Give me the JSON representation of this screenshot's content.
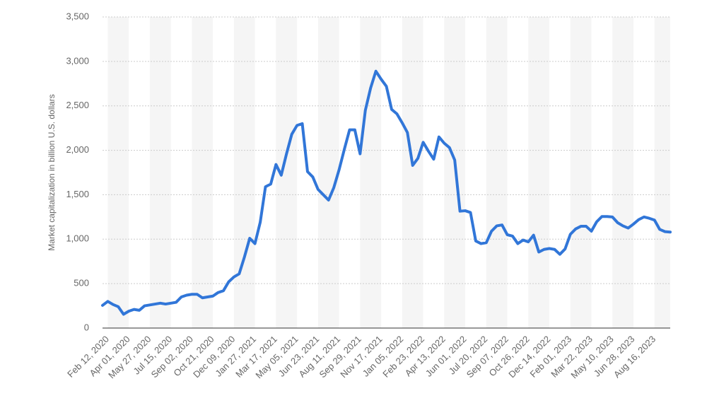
{
  "chart_data": {
    "type": "line",
    "y_label": "Market capitalization in billion U.S. dollars",
    "categories": [
      null,
      "Feb 12, 2020",
      null,
      null,
      null,
      "Apr 01, 2020",
      null,
      null,
      null,
      "May 27, 2020",
      null,
      null,
      null,
      "Jul 15, 2020",
      null,
      null,
      null,
      "Sep 02, 2020",
      null,
      null,
      null,
      "Oct 21, 2020",
      null,
      null,
      null,
      "Dec 09, 2020",
      null,
      null,
      null,
      "Jan 27, 2021",
      null,
      null,
      null,
      "Mar 17, 2021",
      null,
      null,
      null,
      "May 05, 2021",
      null,
      null,
      null,
      "Jun 23, 2021",
      null,
      null,
      null,
      "Aug 11, 2021",
      null,
      null,
      null,
      "Sep 29, 2021",
      null,
      null,
      null,
      "Nov 17, 2021",
      null,
      null,
      null,
      "Jan 05, 2022",
      null,
      null,
      null,
      "Feb 23, 2022",
      null,
      null,
      null,
      "Apr 13, 2022",
      null,
      null,
      null,
      "Jun 01, 2022",
      null,
      null,
      null,
      "Jul 20, 2022",
      null,
      null,
      null,
      "Sep 07, 2022",
      null,
      null,
      null,
      "Oct 26, 2022",
      null,
      null,
      null,
      "Dec 14, 2022",
      null,
      null,
      null,
      "Feb 01, 2023",
      null,
      null,
      null,
      "Mar 22, 2023",
      null,
      null,
      null,
      "May 10, 2023",
      null,
      null,
      null,
      "Jun 28, 2023",
      null,
      null,
      null,
      "Aug 16, 2023",
      null,
      null,
      null
    ],
    "values": [
      255,
      300,
      265,
      240,
      155,
      190,
      210,
      200,
      250,
      260,
      270,
      280,
      270,
      280,
      290,
      350,
      370,
      380,
      380,
      340,
      350,
      360,
      400,
      420,
      520,
      575,
      610,
      800,
      1010,
      950,
      1190,
      1590,
      1620,
      1840,
      1720,
      1960,
      2180,
      2280,
      2300,
      1760,
      1700,
      1560,
      1500,
      1440,
      1580,
      1780,
      2010,
      2230,
      2230,
      1960,
      2450,
      2700,
      2890,
      2800,
      2720,
      2460,
      2410,
      2310,
      2200,
      1830,
      1910,
      2090,
      1990,
      1900,
      2150,
      2080,
      2030,
      1890,
      1315,
      1320,
      1300,
      980,
      950,
      960,
      1090,
      1150,
      1160,
      1050,
      1035,
      950,
      990,
      970,
      1045,
      855,
      885,
      895,
      885,
      830,
      890,
      1055,
      1115,
      1145,
      1145,
      1090,
      1195,
      1255,
      1255,
      1250,
      1185,
      1150,
      1125,
      1170,
      1220,
      1250,
      1235,
      1215,
      1110,
      1085,
      1080
    ],
    "color": "#3176d8",
    "ylim": [
      0,
      3500
    ],
    "yticks": [
      0,
      500,
      {
        "value": 1000,
        "label": "1,000"
      },
      {
        "value": 1500,
        "label": "1,500"
      },
      {
        "value": 2000,
        "label": "2,000"
      },
      {
        "value": 2500,
        "label": "2,500"
      },
      {
        "value": 3000,
        "label": "3,000"
      },
      {
        "value": 3500,
        "label": "3,500"
      }
    ],
    "grid": true
  }
}
